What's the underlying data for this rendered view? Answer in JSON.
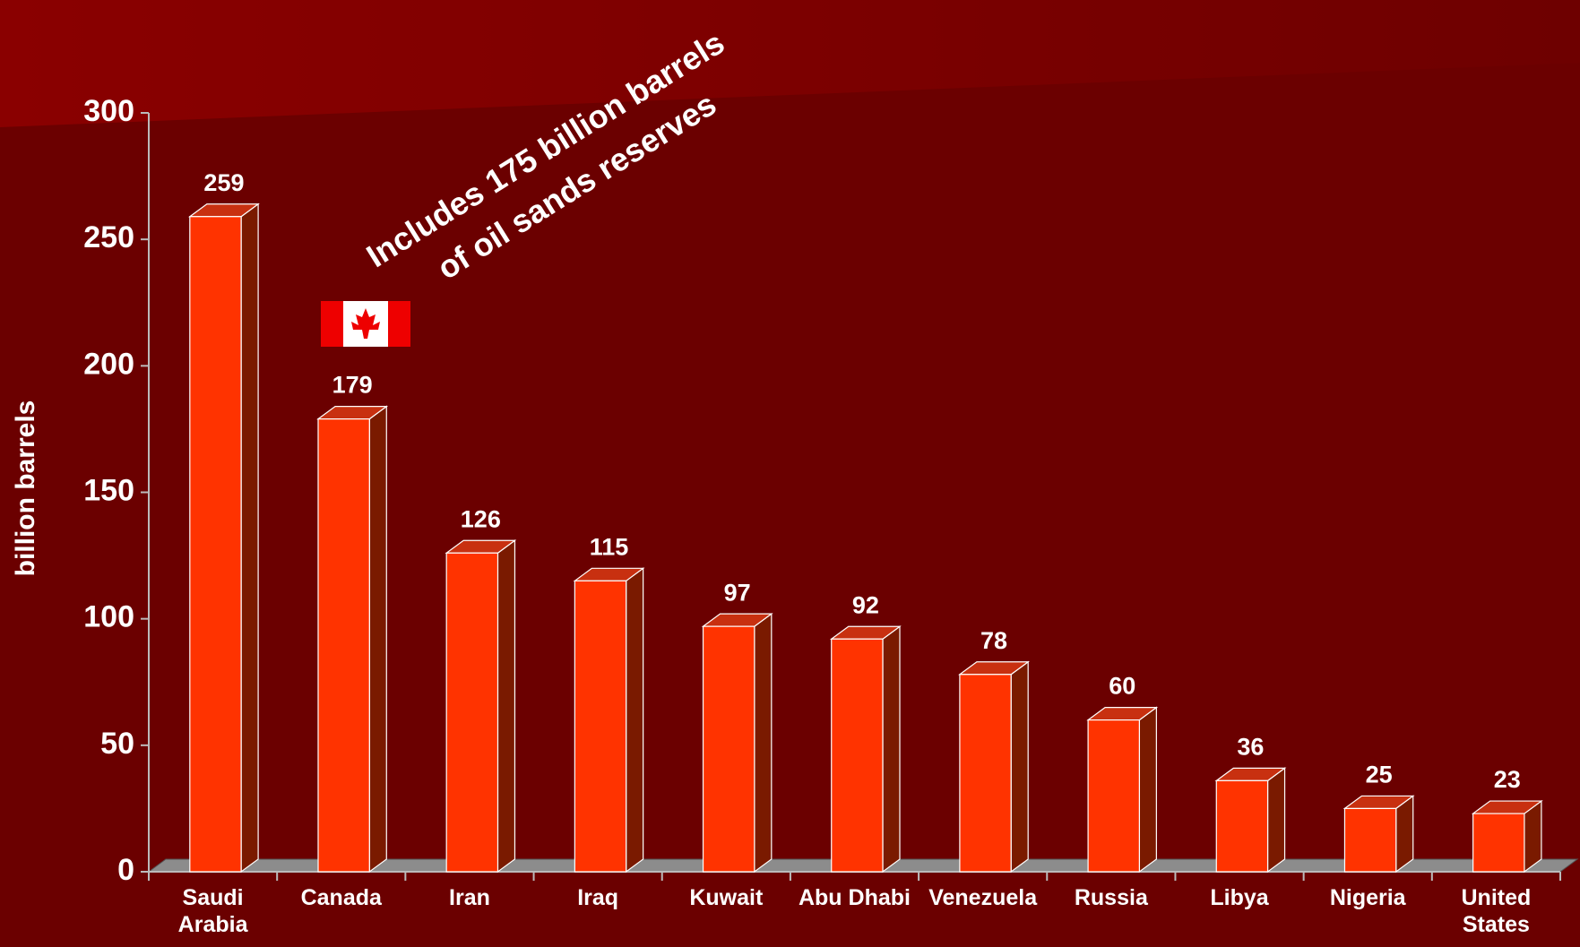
{
  "chart_data": {
    "type": "bar",
    "y_label": "billion barrels",
    "annotations": [
      "Includes 175 billion barrels",
      "of oil sands reserves"
    ],
    "categories": [
      "Saudi Arabia",
      "Canada",
      "Iran",
      "Iraq",
      "Kuwait",
      "Abu Dhabi",
      "Venezuela",
      "Russia",
      "Libya",
      "Nigeria",
      "United States"
    ],
    "values": [
      259,
      179,
      126,
      115,
      97,
      92,
      78,
      60,
      36,
      25,
      23
    ],
    "color": "#ff3300",
    "ylim": [
      0,
      300
    ],
    "yticks": [
      0,
      50,
      100,
      150,
      200,
      250,
      300
    ]
  }
}
